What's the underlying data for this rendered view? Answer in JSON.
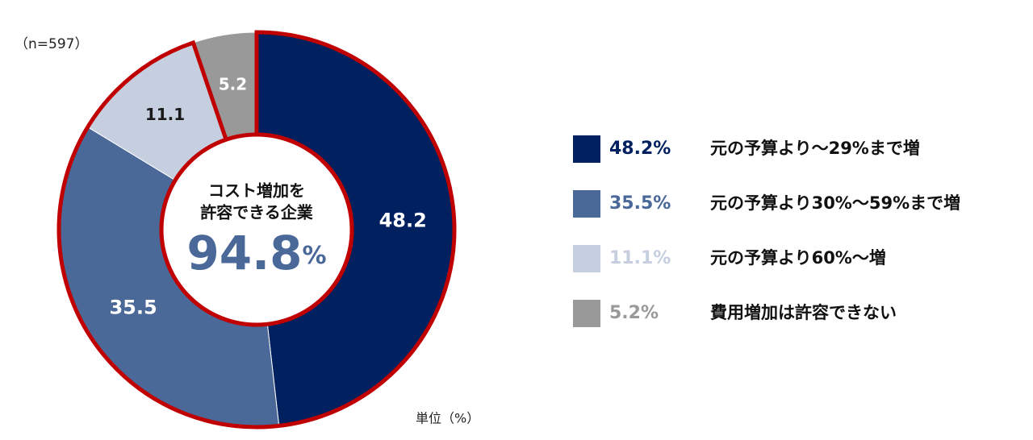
{
  "chart_data": {
    "type": "donut",
    "subtitle": "（n=597）",
    "unit_note": "単位（%）",
    "center_lines": [
      "コスト増加を",
      "許容できる企業"
    ],
    "center_value": "94.8",
    "center_unit": "%",
    "categories": [
      "元の予算より～29%まで増",
      "元の予算より30%～59%まで増",
      "元の予算より60%～増",
      "費用増加は許容できない"
    ],
    "values": [
      48.2,
      35.5,
      11.1,
      5.2
    ],
    "value_labels": [
      "48.2%",
      "35.5%",
      "11.1%",
      "5.2%"
    ],
    "colors": [
      "#002060",
      "#4a6898",
      "#c5cfe0",
      "#999999"
    ],
    "label_colors": [
      "#ffffff",
      "#ffffff",
      "#1a1a1a",
      "#ffffff"
    ],
    "highlight_color": "#c00000"
  }
}
